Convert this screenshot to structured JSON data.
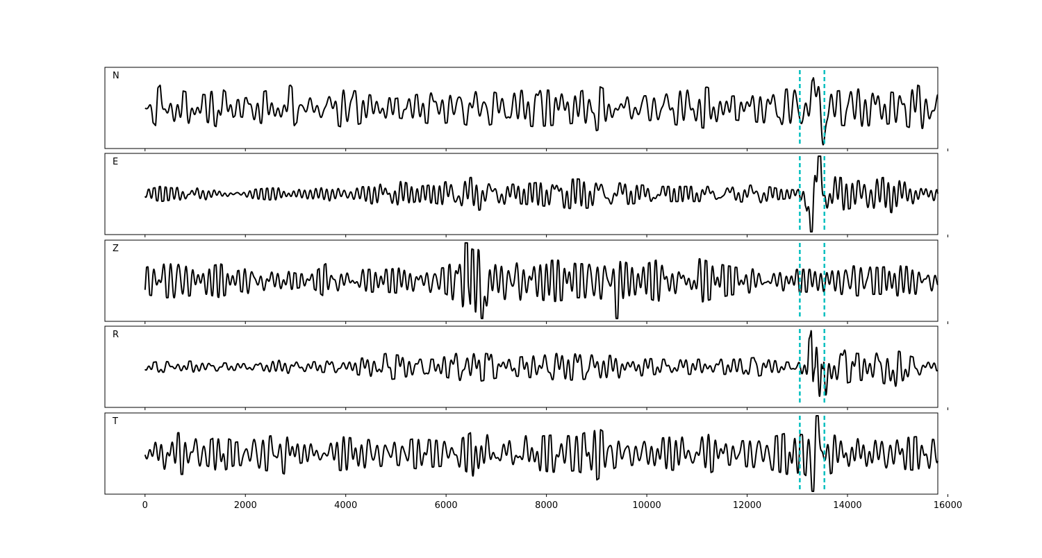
{
  "chart_data": {
    "type": "line",
    "xlim": [
      -800,
      15800
    ],
    "xticks": [
      0,
      2000,
      4000,
      6000,
      8000,
      10000,
      12000,
      14000,
      16000
    ],
    "tick_labels": [
      "0",
      "2000",
      "4000",
      "6000",
      "8000",
      "10000",
      "12000",
      "14000",
      "16000"
    ],
    "x_range": [
      0,
      15800
    ],
    "markers": [
      13050,
      13540
    ],
    "marker_color": "#00BFBF",
    "trace_color": "#000000",
    "y_ticks_shown": false,
    "grid": false,
    "panels": [
      {
        "name": "N",
        "envelope": [
          [
            0,
            0.15
          ],
          [
            300,
            0.6
          ],
          [
            600,
            0.5
          ],
          [
            900,
            0.4
          ],
          [
            1200,
            0.35
          ],
          [
            1500,
            0.55
          ],
          [
            1800,
            0.2
          ],
          [
            2100,
            0.3
          ],
          [
            2400,
            0.45
          ],
          [
            2700,
            0.5
          ],
          [
            2900,
            0.6
          ],
          [
            3100,
            0.25
          ],
          [
            3500,
            0.3
          ],
          [
            3900,
            0.5
          ],
          [
            4200,
            0.45
          ],
          [
            4600,
            0.3
          ],
          [
            5000,
            0.25
          ],
          [
            5400,
            0.35
          ],
          [
            5800,
            0.45
          ],
          [
            6200,
            0.35
          ],
          [
            6600,
            0.55
          ],
          [
            7000,
            0.4
          ],
          [
            7400,
            0.45
          ],
          [
            7800,
            0.5
          ],
          [
            8200,
            0.45
          ],
          [
            8600,
            0.4
          ],
          [
            9000,
            0.6
          ],
          [
            9400,
            0.35
          ],
          [
            9800,
            0.3
          ],
          [
            10200,
            0.35
          ],
          [
            10600,
            0.45
          ],
          [
            11000,
            0.5
          ],
          [
            11200,
            0.55
          ],
          [
            11600,
            0.3
          ],
          [
            12000,
            0.35
          ],
          [
            12400,
            0.4
          ],
          [
            12800,
            0.5
          ],
          [
            13100,
            0.45
          ],
          [
            13400,
            0.85
          ],
          [
            13550,
            0.7
          ],
          [
            13800,
            0.45
          ],
          [
            14200,
            0.5
          ],
          [
            14600,
            0.45
          ],
          [
            15000,
            0.4
          ],
          [
            15400,
            0.6
          ],
          [
            15800,
            0.35
          ]
        ],
        "events": [
          {
            "x": 13420,
            "amp": 0.85,
            "w": 60
          },
          {
            "x": 13520,
            "amp": -0.8,
            "w": 60
          }
        ]
      },
      {
        "name": "E",
        "envelope": [
          [
            0,
            0.1
          ],
          [
            300,
            0.2
          ],
          [
            600,
            0.15
          ],
          [
            900,
            0.3
          ],
          [
            1200,
            0.2
          ],
          [
            1600,
            0.15
          ],
          [
            2000,
            0.1
          ],
          [
            2400,
            0.15
          ],
          [
            2800,
            0.18
          ],
          [
            3200,
            0.12
          ],
          [
            3600,
            0.2
          ],
          [
            4000,
            0.15
          ],
          [
            4400,
            0.2
          ],
          [
            4800,
            0.4
          ],
          [
            5100,
            0.35
          ],
          [
            5400,
            0.2
          ],
          [
            5800,
            0.25
          ],
          [
            6200,
            0.4
          ],
          [
            6600,
            0.45
          ],
          [
            7000,
            0.3
          ],
          [
            7400,
            0.25
          ],
          [
            7800,
            0.3
          ],
          [
            8200,
            0.35
          ],
          [
            8600,
            0.4
          ],
          [
            9000,
            0.35
          ],
          [
            9400,
            0.3
          ],
          [
            9800,
            0.25
          ],
          [
            10200,
            0.2
          ],
          [
            10600,
            0.2
          ],
          [
            11000,
            0.2
          ],
          [
            11400,
            0.2
          ],
          [
            11800,
            0.2
          ],
          [
            12200,
            0.25
          ],
          [
            12600,
            0.15
          ],
          [
            13000,
            0.1
          ],
          [
            13200,
            0.3
          ],
          [
            13400,
            0.9
          ],
          [
            13550,
            0.5
          ],
          [
            13800,
            0.45
          ],
          [
            14200,
            0.35
          ],
          [
            14600,
            0.4
          ],
          [
            14900,
            0.5
          ],
          [
            15200,
            0.3
          ],
          [
            15600,
            0.2
          ],
          [
            15800,
            0.15
          ]
        ],
        "events": [
          {
            "x": 13280,
            "amp": -0.9,
            "w": 70
          },
          {
            "x": 13440,
            "amp": 0.9,
            "w": 60
          }
        ]
      },
      {
        "name": "Z",
        "envelope": [
          [
            0,
            0.35
          ],
          [
            300,
            0.45
          ],
          [
            600,
            0.45
          ],
          [
            900,
            0.4
          ],
          [
            1200,
            0.35
          ],
          [
            1500,
            0.45
          ],
          [
            1800,
            0.25
          ],
          [
            2100,
            0.35
          ],
          [
            2400,
            0.45
          ],
          [
            2700,
            0.3
          ],
          [
            3000,
            0.2
          ],
          [
            3300,
            0.15
          ],
          [
            3600,
            0.45
          ],
          [
            4000,
            0.35
          ],
          [
            4400,
            0.3
          ],
          [
            4800,
            0.3
          ],
          [
            5200,
            0.35
          ],
          [
            5600,
            0.3
          ],
          [
            6000,
            0.35
          ],
          [
            6400,
            0.8
          ],
          [
            6700,
            0.85
          ],
          [
            7000,
            0.45
          ],
          [
            7400,
            0.55
          ],
          [
            7800,
            0.5
          ],
          [
            8200,
            0.55
          ],
          [
            8600,
            0.45
          ],
          [
            9000,
            0.45
          ],
          [
            9400,
            0.6
          ],
          [
            9800,
            0.35
          ],
          [
            10200,
            0.55
          ],
          [
            10600,
            0.5
          ],
          [
            11000,
            0.6
          ],
          [
            11400,
            0.45
          ],
          [
            11800,
            0.35
          ],
          [
            12200,
            0.3
          ],
          [
            12600,
            0.25
          ],
          [
            13000,
            0.3
          ],
          [
            13400,
            0.3
          ],
          [
            13800,
            0.35
          ],
          [
            14200,
            0.4
          ],
          [
            14600,
            0.35
          ],
          [
            15000,
            0.4
          ],
          [
            15400,
            0.35
          ],
          [
            15800,
            0.3
          ]
        ],
        "events": [
          {
            "x": 6420,
            "amp": 0.85,
            "w": 50
          },
          {
            "x": 6740,
            "amp": -0.9,
            "w": 50
          },
          {
            "x": 9400,
            "amp": -0.6,
            "w": 40
          }
        ]
      },
      {
        "name": "R",
        "envelope": [
          [
            0,
            0.08
          ],
          [
            300,
            0.15
          ],
          [
            600,
            0.12
          ],
          [
            900,
            0.15
          ],
          [
            1200,
            0.12
          ],
          [
            1600,
            0.1
          ],
          [
            2000,
            0.08
          ],
          [
            2400,
            0.15
          ],
          [
            2800,
            0.18
          ],
          [
            3200,
            0.12
          ],
          [
            3600,
            0.15
          ],
          [
            4000,
            0.15
          ],
          [
            4400,
            0.25
          ],
          [
            4800,
            0.35
          ],
          [
            5100,
            0.3
          ],
          [
            5400,
            0.2
          ],
          [
            5800,
            0.2
          ],
          [
            6200,
            0.35
          ],
          [
            6600,
            0.4
          ],
          [
            7000,
            0.3
          ],
          [
            7400,
            0.25
          ],
          [
            7800,
            0.3
          ],
          [
            8200,
            0.35
          ],
          [
            8600,
            0.35
          ],
          [
            9000,
            0.3
          ],
          [
            9400,
            0.3
          ],
          [
            9800,
            0.25
          ],
          [
            10200,
            0.2
          ],
          [
            10600,
            0.2
          ],
          [
            11000,
            0.2
          ],
          [
            11400,
            0.2
          ],
          [
            11800,
            0.2
          ],
          [
            12200,
            0.25
          ],
          [
            12600,
            0.15
          ],
          [
            13000,
            0.1
          ],
          [
            13300,
            0.9
          ],
          [
            13500,
            0.9
          ],
          [
            13800,
            0.5
          ],
          [
            14200,
            0.35
          ],
          [
            14600,
            0.4
          ],
          [
            14900,
            0.5
          ],
          [
            15200,
            0.3
          ],
          [
            15600,
            0.15
          ],
          [
            15800,
            0.1
          ]
        ],
        "events": [
          {
            "x": 13360,
            "amp": 0.9,
            "w": 60
          },
          {
            "x": 13500,
            "amp": -0.95,
            "w": 60
          },
          {
            "x": 14900,
            "amp": -0.45,
            "w": 60
          }
        ]
      },
      {
        "name": "T",
        "envelope": [
          [
            0,
            0.15
          ],
          [
            300,
            0.5
          ],
          [
            600,
            0.55
          ],
          [
            900,
            0.55
          ],
          [
            1200,
            0.3
          ],
          [
            1500,
            0.5
          ],
          [
            1800,
            0.3
          ],
          [
            2100,
            0.35
          ],
          [
            2400,
            0.45
          ],
          [
            2700,
            0.5
          ],
          [
            2900,
            0.6
          ],
          [
            3100,
            0.25
          ],
          [
            3500,
            0.3
          ],
          [
            3900,
            0.45
          ],
          [
            4200,
            0.4
          ],
          [
            4600,
            0.35
          ],
          [
            5000,
            0.3
          ],
          [
            5400,
            0.4
          ],
          [
            5800,
            0.35
          ],
          [
            6200,
            0.3
          ],
          [
            6600,
            0.65
          ],
          [
            7000,
            0.45
          ],
          [
            7400,
            0.6
          ],
          [
            7800,
            0.45
          ],
          [
            8200,
            0.5
          ],
          [
            8600,
            0.45
          ],
          [
            9000,
            0.7
          ],
          [
            9400,
            0.35
          ],
          [
            9800,
            0.3
          ],
          [
            10200,
            0.4
          ],
          [
            10600,
            0.45
          ],
          [
            11000,
            0.55
          ],
          [
            11200,
            0.55
          ],
          [
            11600,
            0.3
          ],
          [
            12000,
            0.35
          ],
          [
            12400,
            0.4
          ],
          [
            12800,
            0.55
          ],
          [
            13100,
            0.5
          ],
          [
            13400,
            0.85
          ],
          [
            13550,
            0.6
          ],
          [
            13800,
            0.45
          ],
          [
            14200,
            0.5
          ],
          [
            14600,
            0.45
          ],
          [
            15000,
            0.4
          ],
          [
            15400,
            0.45
          ],
          [
            15800,
            0.35
          ]
        ],
        "events": [
          {
            "x": 13380,
            "amp": 0.85,
            "w": 50
          },
          {
            "x": 13320,
            "amp": -0.8,
            "w": 50
          }
        ]
      }
    ]
  }
}
